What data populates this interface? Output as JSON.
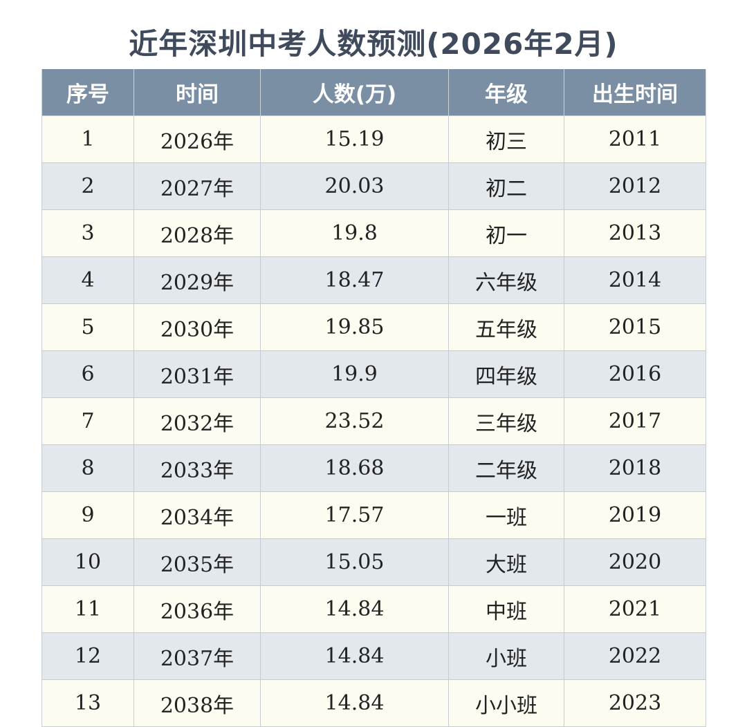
{
  "header": {
    "title": "近年深圳中考人数预测(2026年2月)"
  },
  "table": {
    "headers": [
      "序号",
      "时间",
      "人数(万)",
      "年级",
      "出生时间"
    ],
    "rows": [
      [
        "1",
        "2026年",
        "15.19",
        "初三",
        "2011"
      ],
      [
        "2",
        "2027年",
        "20.03",
        "初二",
        "2012"
      ],
      [
        "3",
        "2028年",
        "19.8",
        "初一",
        "2013"
      ],
      [
        "4",
        "2029年",
        "18.47",
        "六年级",
        "2014"
      ],
      [
        "5",
        "2030年",
        "19.85",
        "五年级",
        "2015"
      ],
      [
        "6",
        "2031年",
        "19.9",
        "四年级",
        "2016"
      ],
      [
        "7",
        "2032年",
        "23.52",
        "三年级",
        "2017"
      ],
      [
        "8",
        "2033年",
        "18.68",
        "二年级",
        "2018"
      ],
      [
        "9",
        "2034年",
        "17.57",
        "一班",
        "2019"
      ],
      [
        "10",
        "2035年",
        "15.05",
        "大班",
        "2020"
      ],
      [
        "11",
        "2036年",
        "14.84",
        "中班",
        "2021"
      ],
      [
        "12",
        "2037年",
        "14.84",
        "小班",
        "2022"
      ],
      [
        "13",
        "2038年",
        "14.84",
        "小小班",
        "2023"
      ]
    ]
  }
}
